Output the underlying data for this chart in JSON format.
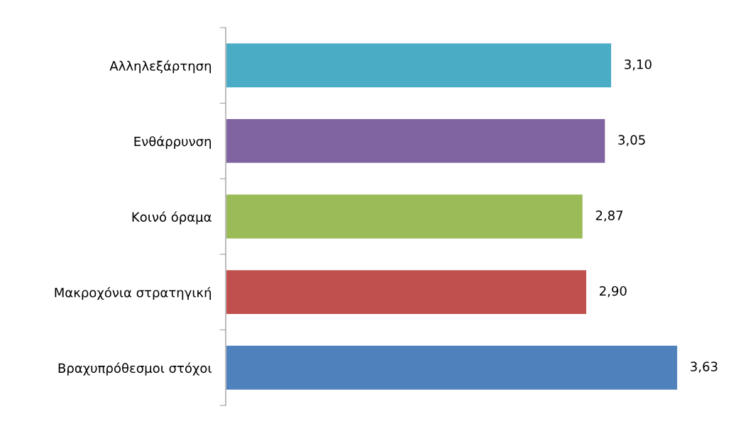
{
  "chart_data": {
    "type": "bar",
    "orientation": "horizontal",
    "categories": [
      "Αλληλεξάρτηση",
      "Ενθάρρυνση",
      "Κοινό όραμα",
      "Μακροχόνια στρατηγική",
      "Βραχυπρόθεσμοι στόχοι"
    ],
    "values": [
      3.1,
      3.05,
      2.87,
      2.9,
      3.63
    ],
    "colors": [
      "#4bacc6",
      "#8064a2",
      "#9bbb59",
      "#c0504d",
      "#4f81bd"
    ],
    "value_labels": [
      "3,10",
      "3,05",
      "2,87",
      "2,90",
      "3,63"
    ],
    "tick_labels": "y",
    "grid": false,
    "legend": false
  }
}
